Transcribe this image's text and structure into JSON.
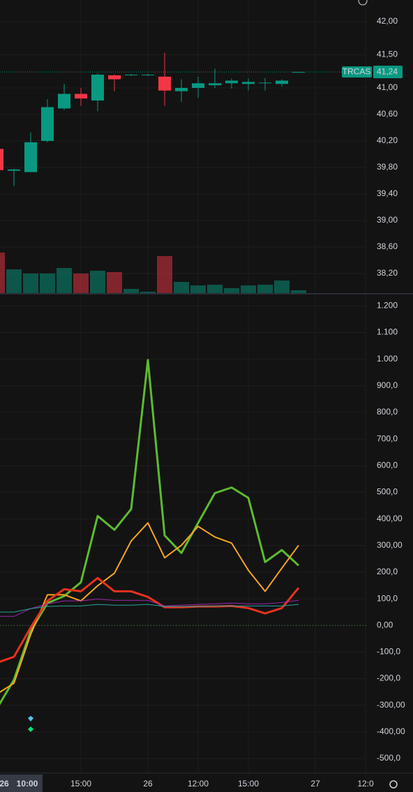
{
  "chart_data": [
    {
      "type": "candlestick",
      "categories": [
        null,
        null,
        null,
        null,
        null,
        "15:00",
        null,
        null,
        null,
        "26",
        null,
        null,
        "12:00",
        null,
        null,
        "15:00",
        null,
        null,
        null,
        "27",
        null,
        null,
        "12:0"
      ],
      "cursor_label": [
        "26",
        "10:00"
      ],
      "open": [
        40.08,
        39.75,
        39.73,
        40.2,
        40.69,
        40.91,
        40.81,
        41.19,
        41.19,
        41.19,
        41.17,
        40.95,
        41.0,
        41.04,
        41.07,
        41.06,
        41.07,
        41.06,
        41.23,
        null,
        null,
        null,
        null
      ],
      "high": [
        40.12,
        39.78,
        40.33,
        40.83,
        41.06,
        41.0,
        41.22,
        41.2,
        41.21,
        41.21,
        41.53,
        41.13,
        41.17,
        41.29,
        41.14,
        41.14,
        41.15,
        41.13,
        41.24,
        null,
        null,
        null,
        null
      ],
      "low": [
        39.76,
        39.52,
        39.73,
        40.18,
        40.67,
        40.73,
        40.65,
        40.95,
        41.18,
        41.18,
        40.73,
        40.79,
        40.85,
        41.0,
        40.99,
        40.96,
        40.96,
        41.02,
        41.23,
        null,
        null,
        null,
        null
      ],
      "close": [
        39.76,
        39.77,
        40.18,
        40.71,
        40.91,
        40.84,
        41.2,
        41.13,
        41.2,
        41.2,
        40.96,
        41.0,
        41.07,
        41.07,
        41.11,
        41.09,
        41.08,
        41.11,
        41.24,
        null,
        null,
        null,
        null
      ],
      "volume": [
        58,
        34,
        28,
        28,
        36,
        28,
        32,
        30,
        6,
        2,
        53,
        16,
        11,
        12,
        7,
        11,
        12,
        18,
        4,
        null,
        null,
        null,
        null
      ],
      "volume_lim": [
        0,
        420
      ],
      "up_color": "#089981",
      "down_color": "#f23645",
      "ylim": [
        37.905,
        42.326
      ],
      "yticks": [
        {
          "value": 42.0,
          "label": "42,00"
        },
        {
          "value": 41.5,
          "label": "41,50"
        },
        {
          "value": 41.0,
          "label": "41,00"
        },
        {
          "value": 40.6,
          "label": "40,60"
        },
        {
          "value": 40.2,
          "label": "40,20"
        },
        {
          "value": 39.8,
          "label": "39,80"
        },
        {
          "value": 39.4,
          "label": "39,40"
        },
        {
          "value": 39.0,
          "label": "39,00"
        },
        {
          "value": 38.6,
          "label": "38,60"
        },
        {
          "value": 38.2,
          "label": "38,20"
        }
      ],
      "symbol": "TRCAS",
      "last_price": {
        "value": 41.24,
        "label": "41,24"
      },
      "grid": true
    },
    {
      "type": "line",
      "series": [
        {
          "color": "#5dbb2e",
          "width": 3,
          "values": [
            -310,
            -204,
            -21,
            84,
            110,
            162,
            411,
            359,
            437,
            997,
            338,
            272,
            385,
            497,
            518,
            479,
            238,
            283,
            225,
            null,
            null,
            null,
            null
          ]
        },
        {
          "color": "#f5a623",
          "width": 2,
          "values": [
            -257,
            -217,
            -34,
            115,
            115,
            92,
            149,
            196,
            317,
            385,
            254,
            301,
            372,
            332,
            309,
            207,
            128,
            215,
            301,
            null,
            null,
            null,
            null
          ]
        },
        {
          "color": "#e8321e",
          "width": 3,
          "values": [
            -140,
            -118,
            -8,
            92,
            136,
            128,
            178,
            128,
            128,
            107,
            68,
            68,
            71,
            71,
            73,
            65,
            45,
            65,
            141,
            null,
            null,
            null,
            null
          ]
        },
        {
          "color": "#9c27b0",
          "width": 1,
          "values": [
            34,
            34,
            63,
            81,
            92,
            92,
            99,
            94,
            94,
            94,
            73,
            76,
            79,
            81,
            84,
            81,
            81,
            86,
            94,
            null,
            null,
            null,
            null
          ]
        },
        {
          "color": "#26a69a",
          "width": 1,
          "values": [
            50,
            50,
            63,
            71,
            73,
            73,
            79,
            76,
            76,
            79,
            71,
            71,
            71,
            73,
            73,
            73,
            73,
            73,
            79,
            null,
            null,
            null,
            null
          ]
        }
      ],
      "ylim": [
        -555,
        1243
      ],
      "yticks": [
        {
          "value": 1200,
          "label": "1.200"
        },
        {
          "value": 1100,
          "label": "1.100"
        },
        {
          "value": 1000,
          "label": "1.000"
        },
        {
          "value": 900,
          "label": "900,0"
        },
        {
          "value": 800,
          "label": "800,0"
        },
        {
          "value": 700,
          "label": "700,0"
        },
        {
          "value": 600,
          "label": "600,0"
        },
        {
          "value": 500,
          "label": "500,0"
        },
        {
          "value": 400,
          "label": "400,00"
        },
        {
          "value": 300,
          "label": "300,00"
        },
        {
          "value": 200,
          "label": "200,0"
        },
        {
          "value": 100,
          "label": "100,0"
        },
        {
          "value": 0,
          "label": "0,00"
        },
        {
          "value": -100,
          "label": "-100,0"
        },
        {
          "value": -200,
          "label": "-200,0"
        },
        {
          "value": -300,
          "label": "-300,00"
        },
        {
          "value": -400,
          "label": "-400,00"
        },
        {
          "value": -500,
          "label": "-500,0"
        }
      ],
      "zero_line": true,
      "grid": true
    }
  ]
}
